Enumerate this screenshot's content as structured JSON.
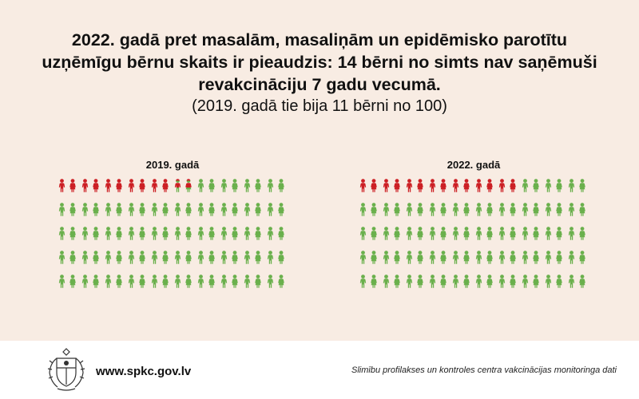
{
  "header": {
    "title": "2022. gadā pret masalām, masaliņām un epidēmisko parotītu uzņēmīgu bērnu skaits ir pieaudzis: 14 bērni no simts nav saņēmuši revakcināciju 7 gadu vecumā.",
    "subtitle": "(2019. gadā tie bija 11 bērni no 100)"
  },
  "chart_data": [
    {
      "type": "pictogram",
      "title": "2019. gadā",
      "total": 100,
      "units_per_icon": 2,
      "categories": [
        "nav saņēmuši revakcināciju",
        "saņēmuši revakcināciju"
      ],
      "values": [
        11,
        89
      ],
      "colors": [
        "#cc1f24",
        "#6ab04c"
      ]
    },
    {
      "type": "pictogram",
      "title": "2022. gadā",
      "total": 100,
      "units_per_icon": 2,
      "categories": [
        "nav saņēmuši revakcināciju",
        "saņēmuši revakcināciju"
      ],
      "values": [
        14,
        86
      ],
      "colors": [
        "#cc1f24",
        "#6ab04c"
      ]
    }
  ],
  "footer": {
    "emblem_icon": "latvia-coat-of-arms-icon",
    "url": "www.spkc.gov.lv",
    "source": "Slimību profilakses un kontroles centra vakcinācijas monitoringa dati"
  }
}
